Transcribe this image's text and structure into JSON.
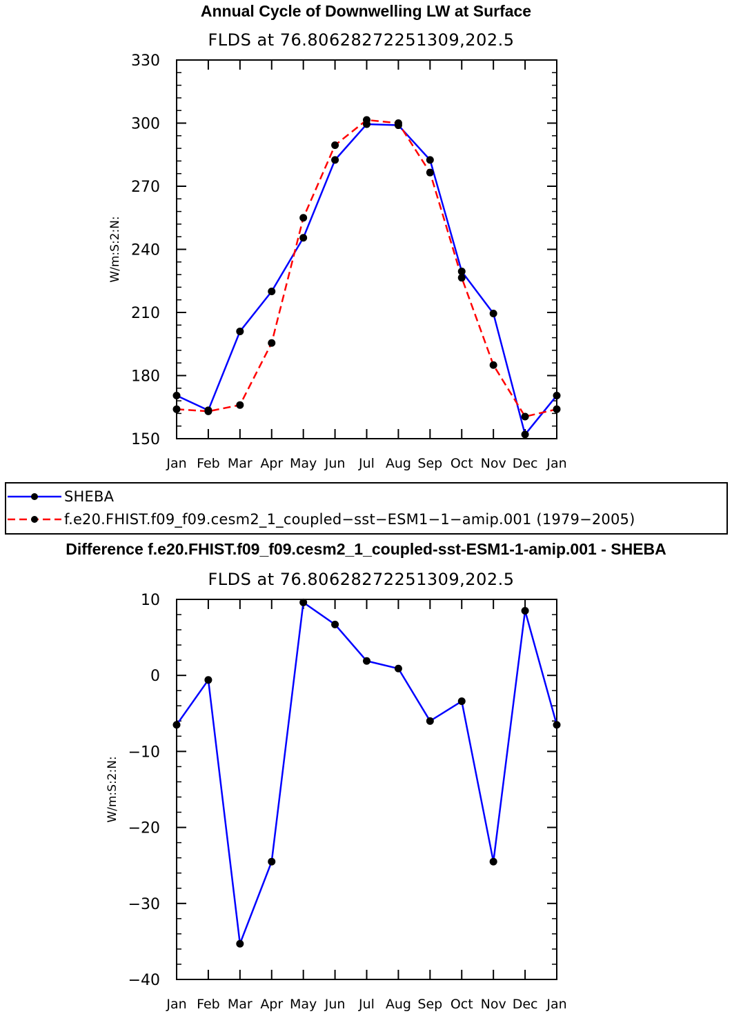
{
  "chart_data": [
    {
      "type": "line",
      "title": "Annual Cycle of Downwelling LW at Surface",
      "subtitle": "FLDS at 76.80628272251309,202.5",
      "xlabel": "",
      "ylabel": "W/m:S:2:N:",
      "categories": [
        "Jan",
        "Feb",
        "Mar",
        "Apr",
        "May",
        "Jun",
        "Jul",
        "Aug",
        "Sep",
        "Oct",
        "Nov",
        "Dec",
        "Jan"
      ],
      "ylim": [
        150,
        330
      ],
      "yticks": [
        150,
        180,
        210,
        240,
        270,
        300,
        330
      ],
      "series": [
        {
          "name": "SHEBA",
          "color": "#0000ff",
          "dash": "solid",
          "values": [
            170.5,
            163.5,
            201,
            220,
            245.5,
            282.5,
            299.5,
            299,
            282.5,
            229.5,
            209.5,
            152,
            170.5
          ]
        },
        {
          "name": "f.e20.FHIST.f09_f09.cesm2_1_coupled-sst-ESM1-1-amip.001 (1979-2005)",
          "color": "#ff0000",
          "dash": "dashed",
          "values": [
            164,
            163,
            166,
            195.5,
            255,
            289.5,
            301.5,
            300,
            276.5,
            226.5,
            185,
            160.5,
            164
          ]
        }
      ]
    },
    {
      "type": "line",
      "title": "Difference f.e20.FHIST.f09_f09.cesm2_1_coupled-sst-ESM1-1-amip.001 - SHEBA",
      "subtitle": "FLDS at 76.80628272251309,202.5",
      "xlabel": "",
      "ylabel": "W/m:S:2:N:",
      "categories": [
        "Jan",
        "Feb",
        "Mar",
        "Apr",
        "May",
        "Jun",
        "Jul",
        "Aug",
        "Sep",
        "Oct",
        "Nov",
        "Dec",
        "Jan"
      ],
      "ylim": [
        -40,
        10
      ],
      "yticks": [
        -40,
        -30,
        -20,
        -10,
        0,
        10
      ],
      "series": [
        {
          "name": "Difference",
          "color": "#0000ff",
          "dash": "solid",
          "values": [
            -6.5,
            -0.6,
            -35.3,
            -24.5,
            9.6,
            6.7,
            1.9,
            0.9,
            -6.0,
            -3.4,
            -24.5,
            8.5,
            -6.5
          ]
        }
      ]
    }
  ],
  "legend": {
    "items": [
      {
        "label": "SHEBA",
        "color": "#0000ff",
        "dash": "solid"
      },
      {
        "label": "f.e20.FHIST.f09_f09.cesm2_1_coupled−sst−ESM1−1−amip.001 (1979−2005)",
        "color": "#ff0000",
        "dash": "dashed"
      }
    ]
  }
}
